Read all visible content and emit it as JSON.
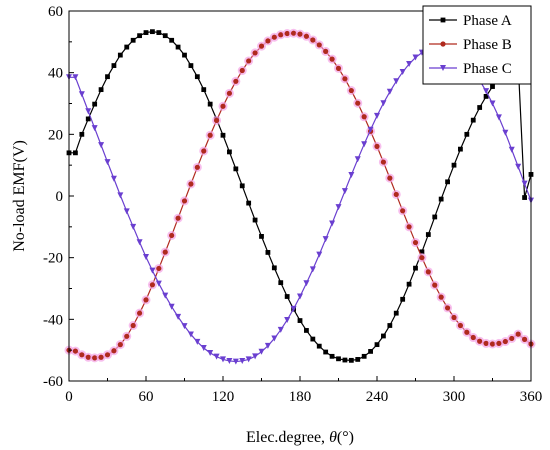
{
  "chart_data": {
    "type": "line",
    "title": "",
    "xlabel_prefix": "Elec.degree, ",
    "xlabel_symbol": "θ",
    "xlabel_suffix": "(°)",
    "ylabel": "No-load EMF(V)",
    "xlim": [
      0,
      360
    ],
    "ylim": [
      -60,
      60
    ],
    "x_ticks": [
      "0",
      "60",
      "120",
      "180",
      "240",
      "300",
      "360"
    ],
    "y_ticks": [
      "-60",
      "-40",
      "-20",
      "0",
      "20",
      "40",
      "60"
    ],
    "grid": false,
    "legend_position": "top-right",
    "x": [
      0,
      5,
      10,
      15,
      20,
      25,
      30,
      35,
      40,
      45,
      50,
      55,
      60,
      65,
      70,
      75,
      80,
      85,
      90,
      95,
      100,
      105,
      110,
      115,
      120,
      125,
      130,
      135,
      140,
      145,
      150,
      155,
      160,
      165,
      170,
      175,
      180,
      185,
      190,
      195,
      200,
      205,
      210,
      215,
      220,
      225,
      230,
      235,
      240,
      245,
      250,
      255,
      260,
      265,
      270,
      275,
      280,
      285,
      290,
      295,
      300,
      305,
      310,
      315,
      320,
      325,
      330,
      335,
      340,
      345,
      350,
      355,
      360
    ],
    "series": [
      {
        "name": "Phase A",
        "color": "#000000",
        "marker": "square",
        "values": [
          14,
          14,
          20,
          25,
          29.8,
          34.5,
          38.7,
          42.3,
          45.7,
          48.3,
          50.5,
          52,
          53,
          53.3,
          53,
          52,
          50.5,
          48.3,
          45.7,
          42.3,
          38.7,
          34.5,
          29.8,
          24.9,
          19.7,
          14.3,
          8.8,
          3.3,
          -2.3,
          -7.8,
          -13.1,
          -18.3,
          -23.3,
          -28.1,
          -32.6,
          -36.7,
          -40.4,
          -43.6,
          -46.4,
          -48.7,
          -50.6,
          -52,
          -52.8,
          -53.2,
          -53.3,
          -53,
          -52,
          -50.4,
          -48.2,
          -45.4,
          -42,
          -38,
          -33.5,
          -28.6,
          -23.4,
          -18.1,
          -12.5,
          -6.8,
          -1,
          4.6,
          10,
          15.2,
          20,
          24.6,
          28.7,
          32.3,
          35.5,
          38.2,
          40.4,
          42,
          43.1,
          -0.5,
          7
        ]
      },
      {
        "name": "Phase B",
        "color": "#b02a1e",
        "marker": "circle",
        "values": [
          -50,
          -50.3,
          -51.5,
          -52.3,
          -52.5,
          -52.3,
          -51.5,
          -50.2,
          -48.2,
          -45.5,
          -42,
          -38,
          -33.7,
          -28.8,
          -23.5,
          -18.2,
          -12.8,
          -7.2,
          -1.6,
          3.9,
          9.3,
          14.6,
          19.7,
          24.5,
          29.1,
          33.3,
          37.2,
          40.7,
          43.8,
          46.4,
          48.6,
          50.3,
          51.5,
          52.3,
          52.7,
          52.8,
          52.5,
          51.8,
          50.6,
          49,
          46.9,
          44.4,
          41.4,
          38,
          34.2,
          30.1,
          25.7,
          21,
          16.1,
          11,
          5.8,
          0.5,
          -4.8,
          -10,
          -15.1,
          -20,
          -24.6,
          -28.9,
          -32.8,
          -36.3,
          -39.4,
          -42,
          -44.2,
          -45.9,
          -47.1,
          -47.8,
          -48,
          -47.8,
          -47.2,
          -46.2,
          -44.8,
          -46.5,
          -48
        ]
      },
      {
        "name": "Phase C",
        "color": "#6a3fd0",
        "marker": "triangle",
        "values": [
          38.5,
          38.5,
          33,
          27.5,
          22,
          16.5,
          11,
          5.6,
          0.2,
          -5,
          -10,
          -15,
          -19.8,
          -24.2,
          -28.4,
          -32.3,
          -35.9,
          -39.2,
          -42.2,
          -44.9,
          -47.3,
          -49.3,
          -50.9,
          -52.1,
          -53,
          -53.5,
          -53.7,
          -53.5,
          -53,
          -52,
          -50.5,
          -48.6,
          -46.2,
          -43.4,
          -40.2,
          -36.6,
          -32.6,
          -28.3,
          -23.8,
          -19,
          -14,
          -8.9,
          -3.6,
          1.6,
          6.8,
          11.9,
          16.8,
          21.5,
          26,
          30.1,
          33.8,
          37.2,
          40.2,
          42.8,
          44.9,
          46.5,
          47.5,
          48,
          48,
          47.5,
          46.5,
          45,
          43,
          40.5,
          37.5,
          34,
          30,
          25.5,
          20.5,
          15,
          9.5,
          4,
          -1.5
        ]
      }
    ]
  }
}
